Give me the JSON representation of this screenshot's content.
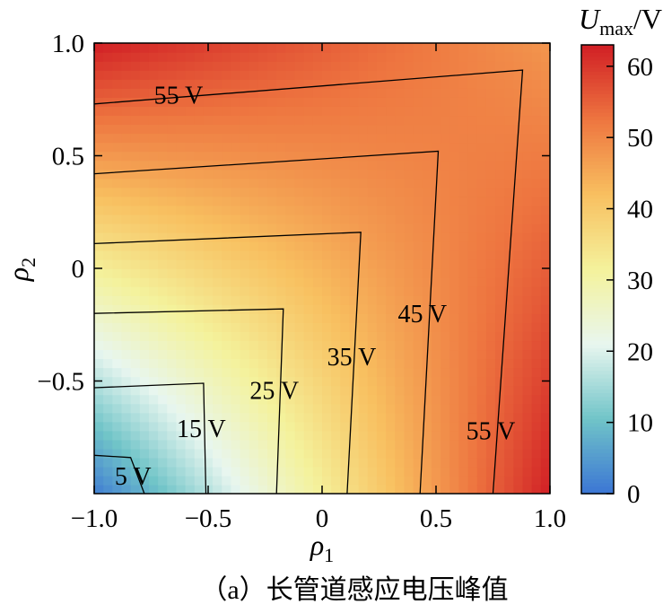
{
  "caption": "（a）长管道感应电压峰值",
  "chart_data": {
    "type": "heatmap",
    "subtype": "filled contour with isolines",
    "xlabel": "ρ1",
    "ylabel": "ρ2",
    "xlim": [
      -1.0,
      1.0
    ],
    "ylim": [
      -1.0,
      1.0
    ],
    "x_ticks": [
      -1.0,
      -0.5,
      0,
      0.5,
      1.0
    ],
    "x_tick_labels": [
      "−1.0",
      "−0.5",
      "0",
      "0.5",
      "1.0"
    ],
    "y_ticks": [
      1.0,
      0.5,
      0,
      -0.5
    ],
    "y_tick_labels": [
      "1.0",
      "0.5",
      "0",
      "−0.5"
    ],
    "grid": false,
    "colorbar": {
      "label": "Umax/V",
      "range": [
        0,
        63
      ],
      "ticks": [
        0,
        10,
        20,
        30,
        40,
        50,
        60
      ],
      "tick_labels": [
        "0",
        "10",
        "20",
        "30",
        "40",
        "50",
        "60"
      ],
      "colormap": [
        "#3b75d4",
        "#70c4c8",
        "#e8f6ef",
        "#f4f29c",
        "#f8c060",
        "#ee7640",
        "#d11f25"
      ]
    },
    "corner_values": {
      "at_-1_-1": 1,
      "at_1_-1": 63,
      "at_-1_1": 63,
      "at_1_1": 48
    },
    "contours": [
      {
        "level": 5,
        "label": "5 V",
        "label_pos": [
          -0.83,
          -0.92
        ],
        "path": [
          [
            -1.0,
            -0.83
          ],
          [
            -0.84,
            -0.84
          ],
          [
            -0.78,
            -1.0
          ]
        ]
      },
      {
        "level": 15,
        "label": "15 V",
        "label_pos": [
          -0.53,
          -0.71
        ],
        "path": [
          [
            -1.0,
            -0.53
          ],
          [
            -0.52,
            -0.51
          ],
          [
            -0.51,
            -1.0
          ]
        ]
      },
      {
        "level": 25,
        "label": "25 V",
        "label_pos": [
          -0.21,
          -0.54
        ],
        "path": [
          [
            -1.0,
            -0.2
          ],
          [
            -0.17,
            -0.18
          ],
          [
            -0.2,
            -1.0
          ]
        ]
      },
      {
        "level": 35,
        "label": "35 V",
        "label_pos": [
          0.13,
          -0.39
        ],
        "path": [
          [
            -1.0,
            0.11
          ],
          [
            0.17,
            0.16
          ],
          [
            0.11,
            -1.0
          ]
        ]
      },
      {
        "level": 45,
        "label": "45 V",
        "label_pos": [
          0.44,
          -0.2
        ],
        "path": [
          [
            -1.0,
            0.42
          ],
          [
            0.51,
            0.52
          ],
          [
            0.43,
            -1.0
          ]
        ]
      },
      {
        "level": 55,
        "label": "55 V",
        "label_pos": [
          -0.63,
          0.77
        ],
        "path": [
          [
            -1.0,
            0.73
          ],
          [
            0.88,
            0.88
          ],
          [
            0.75,
            -1.0
          ]
        ]
      },
      {
        "level": 55,
        "label": "55 V",
        "label_pos": [
          0.74,
          -0.72
        ],
        "path": []
      }
    ]
  }
}
